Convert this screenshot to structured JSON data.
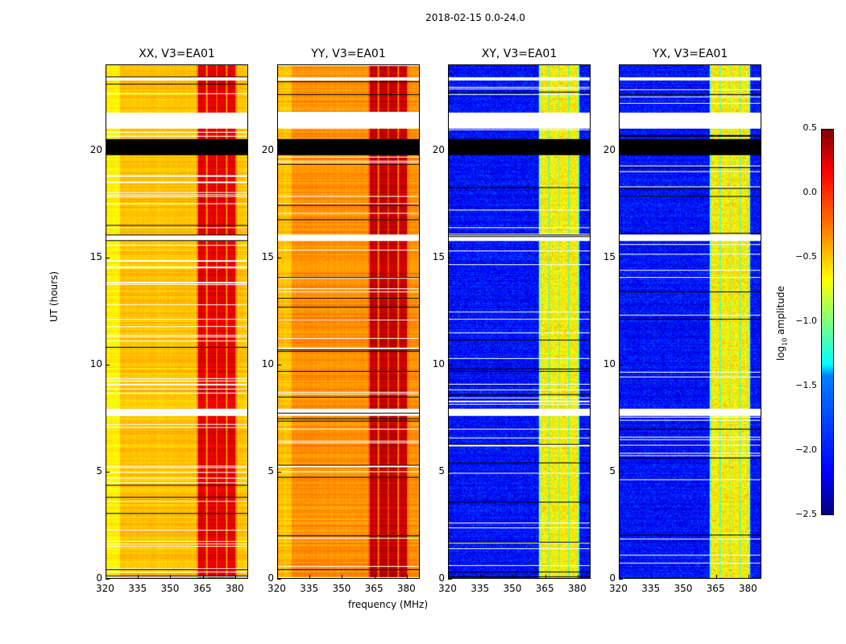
{
  "chart_data": {
    "type": "heatmap",
    "title": "2018-02-15 0.0-24.0",
    "xlabel": "frequency (MHz)",
    "ylabel": "UT (hours)",
    "xlim": [
      320,
      386
    ],
    "ylim": [
      0,
      24
    ],
    "xticks": [
      "320",
      "335",
      "350",
      "365",
      "380"
    ],
    "yticks": [
      "0",
      "5",
      "10",
      "15",
      "20"
    ],
    "ytick_values": [
      0,
      5,
      10,
      15,
      20
    ],
    "xtick_values": [
      320,
      335,
      350,
      365,
      380
    ],
    "colorbar": {
      "label": "log10 amplitude",
      "label_main": "log",
      "label_sub": "10",
      "label_rest": " amplitude",
      "range": [
        -2.5,
        0.5
      ],
      "ticks": [
        "0.5",
        "0.0",
        "−0.5",
        "−1.0",
        "−1.5",
        "−2.0",
        "−2.5"
      ],
      "tick_values": [
        0.5,
        0.0,
        -0.5,
        -1.0,
        -1.5,
        -2.0,
        -2.5
      ],
      "colormap": "jet"
    },
    "rfi_band_mhz": [
      362,
      381
    ],
    "flagged_white_hours": [
      [
        21.05,
        21.8
      ],
      [
        7.6,
        7.95
      ],
      [
        15.8,
        16.1
      ],
      [
        23.3,
        23.45
      ]
    ],
    "flagged_black_hours": [
      [
        19.8,
        20.55
      ]
    ],
    "panels": [
      {
        "title": "XX, V3=EA01",
        "base_level": -0.45,
        "rfi_level": 0.2
      },
      {
        "title": "YY, V3=EA01",
        "base_level": -0.3,
        "rfi_level": 0.3
      },
      {
        "title": "XY, V3=EA01",
        "base_level": -2.1,
        "rfi_level": -0.6
      },
      {
        "title": "YX, V3=EA01",
        "base_level": -2.1,
        "rfi_level": -0.6
      }
    ]
  }
}
